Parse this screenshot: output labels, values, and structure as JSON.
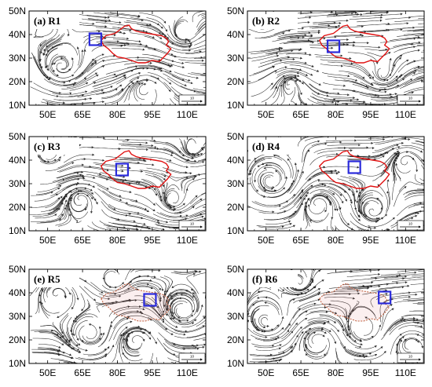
{
  "colors": {
    "streamline": "#2a2a2a",
    "plateau_outline": "#e01010",
    "plateau_outline_faded": "#c06040",
    "box": "#2a2adb",
    "frame": "#000000",
    "label_background": "#ffffff"
  },
  "chart_data": [
    {
      "type": "streamline-map",
      "panel_label": "(a) R1",
      "x_ticks": [
        "50E",
        "65E",
        "80E",
        "95E",
        "110E"
      ],
      "y_ticks": [
        "50N",
        "40N",
        "30N",
        "20N",
        "10N"
      ],
      "xlim": [
        42,
        118
      ],
      "ylim": [
        10,
        50
      ],
      "reference_vector": "10",
      "box_center": {
        "lon": 70.5,
        "lat": 38
      },
      "outline_style": "solid",
      "flow_pattern": "westerly-with-southern-cyclone"
    },
    {
      "type": "streamline-map",
      "panel_label": "(b) R2",
      "x_ticks": [
        "50E",
        "65E",
        "80E",
        "95E",
        "110E"
      ],
      "y_ticks": [
        "50N",
        "40N",
        "30N",
        "20N",
        "10N"
      ],
      "xlim": [
        42,
        118
      ],
      "ylim": [
        10,
        50
      ],
      "reference_vector": "10",
      "box_center": {
        "lon": 79,
        "lat": 35
      },
      "outline_style": "solid",
      "flow_pattern": "strong-zonal-westerly"
    },
    {
      "type": "streamline-map",
      "panel_label": "(c) R3",
      "x_ticks": [
        "50E",
        "65E",
        "80E",
        "95E",
        "110E"
      ],
      "y_ticks": [
        "50N",
        "40N",
        "30N",
        "20N",
        "10N"
      ],
      "xlim": [
        42,
        118
      ],
      "ylim": [
        10,
        50
      ],
      "reference_vector": "10",
      "box_center": {
        "lon": 82,
        "lat": 36
      },
      "outline_style": "solid",
      "flow_pattern": "westerly-with-northern-eddy"
    },
    {
      "type": "streamline-map",
      "panel_label": "(d) R4",
      "x_ticks": [
        "50E",
        "65E",
        "80E",
        "95E",
        "110E"
      ],
      "y_ticks": [
        "50N",
        "40N",
        "30N",
        "20N",
        "10N"
      ],
      "xlim": [
        42,
        118
      ],
      "ylim": [
        10,
        50
      ],
      "reference_vector": "10",
      "box_center": {
        "lon": 88,
        "lat": 37
      },
      "outline_style": "solid",
      "flow_pattern": "western-cyclone"
    },
    {
      "type": "streamline-map",
      "panel_label": "(e) R5",
      "x_ticks": [
        "50E",
        "65E",
        "80E",
        "95E",
        "110E"
      ],
      "y_ticks": [
        "50N",
        "40N",
        "30N",
        "20N",
        "10N"
      ],
      "xlim": [
        42,
        118
      ],
      "ylim": [
        10,
        50
      ],
      "reference_vector": "10",
      "box_center": {
        "lon": 94,
        "lat": 37
      },
      "outline_style": "faded",
      "flow_pattern": "weak-vortices"
    },
    {
      "type": "streamline-map",
      "panel_label": "(f) R6",
      "x_ticks": [
        "50E",
        "65E",
        "80E",
        "95E",
        "110E"
      ],
      "y_ticks": [
        "50N",
        "40N",
        "30N",
        "20N",
        "10N"
      ],
      "xlim": [
        42,
        118
      ],
      "ylim": [
        10,
        50
      ],
      "reference_vector": "10",
      "box_center": {
        "lon": 101,
        "lat": 38
      },
      "outline_style": "faded",
      "flow_pattern": "weak-vortices-east"
    }
  ]
}
